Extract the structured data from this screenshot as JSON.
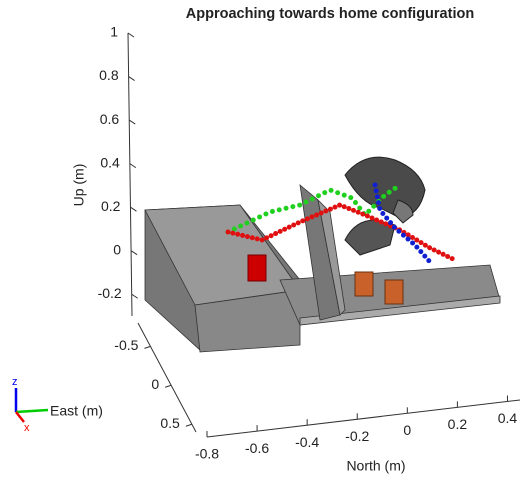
{
  "chart_data": {
    "type": "scene3d",
    "title": "Approaching towards home configuration",
    "xlabel": "North (m)",
    "ylabel": "East (m)",
    "zlabel": "Up (m)",
    "xlim": [
      -0.8,
      0.45
    ],
    "xticks": [
      -0.8,
      -0.6,
      -0.4,
      -0.2,
      0,
      0.2,
      0.4
    ],
    "ylim": [
      -0.8,
      0.6
    ],
    "yticks": [
      -0.5,
      0,
      0.5
    ],
    "zlim": [
      -0.3,
      1
    ],
    "zticks": [
      -0.2,
      0,
      0.2,
      0.4,
      0.6,
      0.8,
      1
    ],
    "triad": {
      "z": "z",
      "x": "x"
    }
  }
}
